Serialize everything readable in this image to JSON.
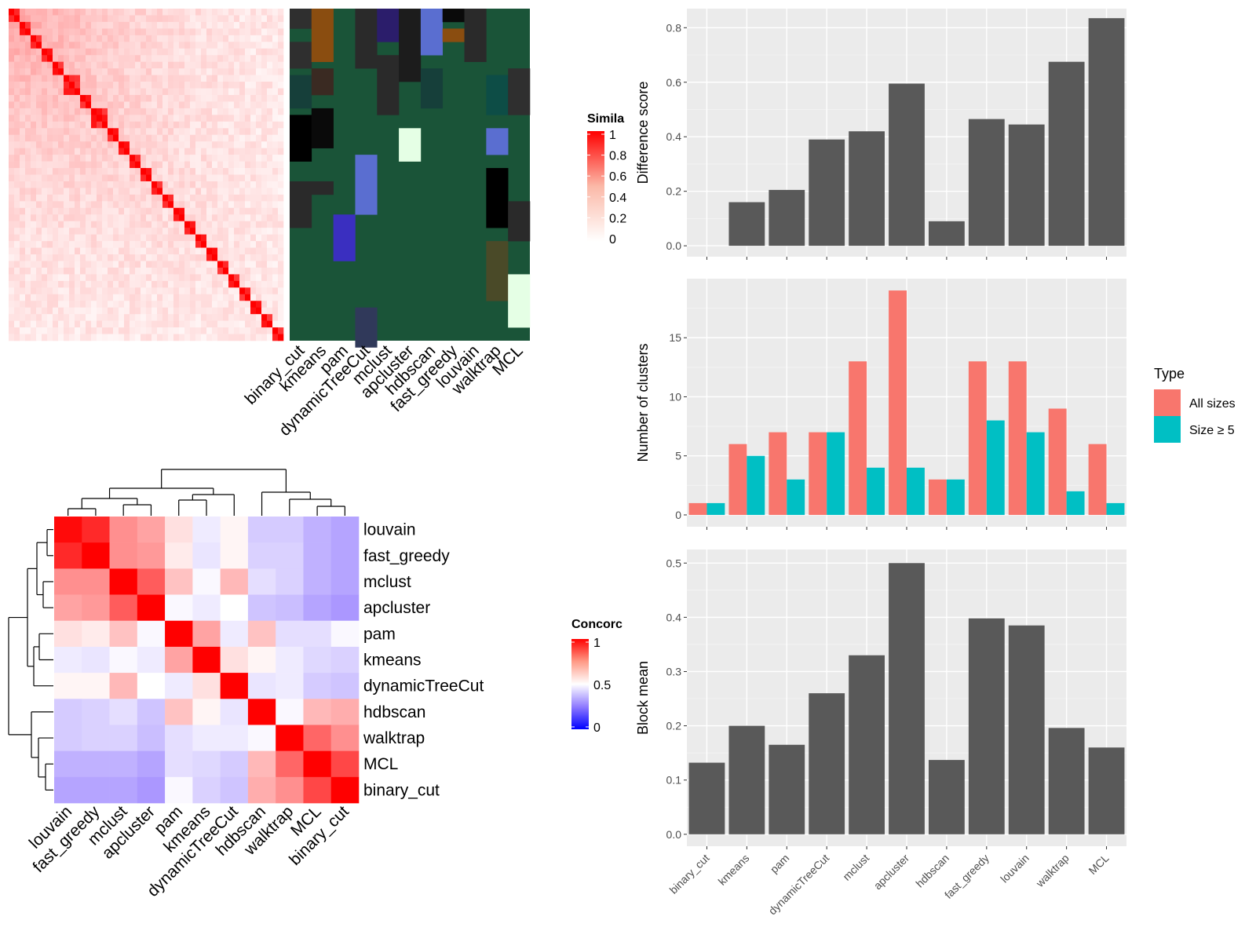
{
  "colors": {
    "bar_fill": "#595959",
    "panel_bg": "#ebebeb",
    "all_sizes": "#f8766d",
    "size_ge5": "#00bfc4",
    "heat_high": "#ff0000",
    "heat_low": "#0000ff",
    "heat_mid": "#ffffff",
    "cluster_bg": "#1a5438"
  },
  "similarity_legend": {
    "title": "Simila",
    "ticks": [
      "1",
      "0.8",
      "0.6",
      "0.4",
      "0.2",
      "0"
    ]
  },
  "concordance_legend": {
    "title": "Concorc",
    "ticks": [
      "1",
      "0.5",
      "0"
    ]
  },
  "membership_labels": [
    "binary_cut",
    "kmeans",
    "pam",
    "dynamicTreeCut",
    "mclust",
    "apcluster",
    "hdbscan",
    "fast_greedy",
    "louvain",
    "walktrap",
    "MCL"
  ],
  "chart_data": [
    {
      "type": "heatmap",
      "title": "",
      "description_source": "similarity matrix (top-left), values 0-1",
      "n_terms": 50
    },
    {
      "type": "heatmap",
      "title": "",
      "rows": [
        "louvain",
        "fast_greedy",
        "mclust",
        "apcluster",
        "pam",
        "kmeans",
        "dynamicTreeCut",
        "hdbscan",
        "walktrap",
        "MCL",
        "binary_cut"
      ],
      "columns": [
        "louvain",
        "fast_greedy",
        "mclust",
        "apcluster",
        "pam",
        "kmeans",
        "dynamicTreeCut",
        "hdbscan",
        "walktrap",
        "MCL",
        "binary_cut"
      ],
      "values": [
        [
          0.98,
          0.92,
          0.72,
          0.68,
          0.56,
          0.44,
          0.52,
          0.34,
          0.34,
          0.26,
          0.22
        ],
        [
          0.92,
          1.0,
          0.72,
          0.7,
          0.54,
          0.42,
          0.52,
          0.36,
          0.36,
          0.26,
          0.22
        ],
        [
          0.72,
          0.72,
          1.0,
          0.82,
          0.62,
          0.48,
          0.64,
          0.4,
          0.36,
          0.26,
          0.22
        ],
        [
          0.68,
          0.7,
          0.82,
          1.0,
          0.48,
          0.44,
          0.5,
          0.32,
          0.3,
          0.22,
          0.18
        ],
        [
          0.56,
          0.54,
          0.62,
          0.48,
          1.0,
          0.68,
          0.44,
          0.62,
          0.4,
          0.4,
          0.48
        ],
        [
          0.44,
          0.42,
          0.48,
          0.44,
          0.68,
          1.0,
          0.56,
          0.52,
          0.44,
          0.38,
          0.36
        ],
        [
          0.52,
          0.52,
          0.64,
          0.5,
          0.44,
          0.56,
          1.0,
          0.42,
          0.44,
          0.34,
          0.32
        ],
        [
          0.34,
          0.36,
          0.4,
          0.32,
          0.62,
          0.52,
          0.42,
          1.0,
          0.48,
          0.64,
          0.66
        ],
        [
          0.34,
          0.36,
          0.36,
          0.3,
          0.4,
          0.44,
          0.44,
          0.48,
          1.0,
          0.8,
          0.72
        ],
        [
          0.26,
          0.26,
          0.26,
          0.22,
          0.4,
          0.38,
          0.34,
          0.64,
          0.8,
          1.0,
          0.86
        ],
        [
          0.22,
          0.22,
          0.22,
          0.18,
          0.48,
          0.36,
          0.32,
          0.66,
          0.72,
          0.86,
          1.0
        ]
      ]
    },
    {
      "type": "bar",
      "title": "",
      "categories": [
        "binary_cut",
        "kmeans",
        "pam",
        "dynamicTreeCut",
        "mclust",
        "apcluster",
        "hdbscan",
        "fast_greedy",
        "louvain",
        "walktrap",
        "MCL"
      ],
      "values": [
        0.0,
        0.16,
        0.205,
        0.39,
        0.42,
        0.595,
        0.09,
        0.465,
        0.445,
        0.675,
        0.835
      ],
      "xlabel": "",
      "ylabel": "Difference score",
      "ylim": [
        -0.04,
        0.87
      ],
      "yticks": [
        "0.0",
        "0.2",
        "0.4",
        "0.6",
        "0.8"
      ],
      "grid": true
    },
    {
      "type": "bar",
      "title": "",
      "categories": [
        "binary_cut",
        "kmeans",
        "pam",
        "dynamicTreeCut",
        "mclust",
        "apcluster",
        "hdbscan",
        "fast_greedy",
        "louvain",
        "walktrap",
        "MCL"
      ],
      "series": [
        {
          "name": "All sizes",
          "values": [
            1,
            6,
            7,
            7,
            13,
            19,
            3,
            13,
            13,
            9,
            6
          ]
        },
        {
          "name": "Size ≥ 5",
          "values": [
            1,
            5,
            3,
            7,
            4,
            4,
            3,
            8,
            7,
            2,
            1
          ]
        }
      ],
      "xlabel": "",
      "ylabel": "Number of clusters",
      "ylim": [
        -1,
        20
      ],
      "yticks": [
        "0",
        "5",
        "10",
        "15"
      ],
      "legend_title": "Type",
      "legend_position": "right",
      "grid": true
    },
    {
      "type": "bar",
      "title": "",
      "categories": [
        "binary_cut",
        "kmeans",
        "pam",
        "dynamicTreeCut",
        "mclust",
        "apcluster",
        "hdbscan",
        "fast_greedy",
        "louvain",
        "walktrap",
        "MCL"
      ],
      "values": [
        0.132,
        0.2,
        0.165,
        0.26,
        0.33,
        0.5,
        0.137,
        0.398,
        0.385,
        0.196,
        0.16
      ],
      "xlabel": "",
      "ylabel": "Block mean",
      "ylim": [
        -0.022,
        0.525
      ],
      "yticks": [
        "0.0",
        "0.1",
        "0.2",
        "0.3",
        "0.4",
        "0.5"
      ],
      "grid": true
    }
  ]
}
